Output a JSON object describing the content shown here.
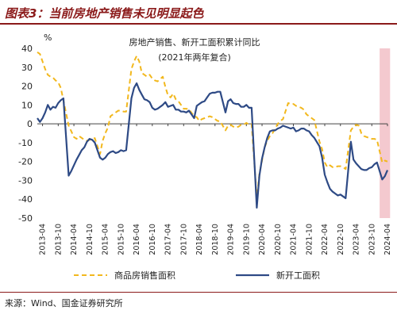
{
  "figure_title": "图表3：当前房地产销售未见明显起色",
  "source": "来源：Wind、国金证券研究所",
  "chart_data": {
    "type": "line",
    "title": "房地产销售、新开工面积累计同比",
    "subtitle": "(2021年两年复合)",
    "ylabel": "%",
    "ylim": [
      -50,
      40
    ],
    "yticks": [
      40,
      30,
      20,
      10,
      0,
      -10,
      -20,
      -30,
      -40,
      -50
    ],
    "x_tick_labels": [
      "2013-04",
      "2013-10",
      "2014-04",
      "2014-10",
      "2015-04",
      "2015-10",
      "2016-04",
      "2016-10",
      "2017-04",
      "2017-10",
      "2018-04",
      "2018-10",
      "2019-04",
      "2019-10",
      "2020-04",
      "2020-10",
      "2021-04",
      "2021-10",
      "2022-04",
      "2022-10",
      "2023-04",
      "2023-10",
      "2024-04"
    ],
    "highlight_band": {
      "from": "2024-01",
      "to": "2024-05",
      "color": "#f4c9cf"
    },
    "series": [
      {
        "name": "商品房销售面积",
        "color": "#f2b81e",
        "dash": true,
        "points": [
          [
            "2013-02",
            38.0
          ],
          [
            "2013-03",
            37.0
          ],
          [
            "2013-04",
            33.0
          ],
          [
            "2013-05",
            29.0
          ],
          [
            "2013-06",
            26.0
          ],
          [
            "2013-07",
            25.0
          ],
          [
            "2013-08",
            24.5
          ],
          [
            "2013-09",
            23.0
          ],
          [
            "2013-10",
            22.0
          ],
          [
            "2013-11",
            19.0
          ],
          [
            "2014-02",
            -1.0
          ],
          [
            "2014-03",
            -4.0
          ],
          [
            "2014-04",
            -7.0
          ],
          [
            "2014-05",
            -8.0
          ],
          [
            "2014-06",
            -6.5
          ],
          [
            "2014-07",
            -7.5
          ],
          [
            "2014-08",
            -8.5
          ],
          [
            "2014-09",
            -9.0
          ],
          [
            "2014-10",
            -8.5
          ],
          [
            "2014-11",
            -8.0
          ],
          [
            "2014-12",
            -7.6
          ],
          [
            "2015-02",
            -16.0
          ],
          [
            "2015-03",
            -9.0
          ],
          [
            "2015-04",
            -5.0
          ],
          [
            "2015-05",
            -2.0
          ],
          [
            "2015-06",
            4.0
          ],
          [
            "2015-07",
            5.0
          ],
          [
            "2015-08",
            6.0
          ],
          [
            "2015-09",
            7.0
          ],
          [
            "2015-10",
            7.0
          ],
          [
            "2015-11",
            6.5
          ],
          [
            "2015-12",
            6.5
          ],
          [
            "2016-02",
            29.0
          ],
          [
            "2016-03",
            33.0
          ],
          [
            "2016-04",
            36.0
          ],
          [
            "2016-05",
            33.0
          ],
          [
            "2016-06",
            27.0
          ],
          [
            "2016-07",
            26.0
          ],
          [
            "2016-08",
            25.0
          ],
          [
            "2016-09",
            26.0
          ],
          [
            "2016-10",
            24.0
          ],
          [
            "2016-11",
            23.0
          ],
          [
            "2016-12",
            22.5
          ],
          [
            "2017-02",
            25.0
          ],
          [
            "2017-03",
            19.5
          ],
          [
            "2017-04",
            15.0
          ],
          [
            "2017-05",
            14.0
          ],
          [
            "2017-06",
            16.0
          ],
          [
            "2017-07",
            13.0
          ],
          [
            "2017-08",
            12.0
          ],
          [
            "2017-09",
            10.0
          ],
          [
            "2017-10",
            8.0
          ],
          [
            "2017-11",
            8.0
          ],
          [
            "2017-12",
            7.7
          ],
          [
            "2018-02",
            4.0
          ],
          [
            "2018-03",
            3.5
          ],
          [
            "2018-04",
            1.5
          ],
          [
            "2018-05",
            2.5
          ],
          [
            "2018-06",
            3.0
          ],
          [
            "2018-07",
            3.5
          ],
          [
            "2018-08",
            4.0
          ],
          [
            "2018-09",
            3.5
          ],
          [
            "2018-10",
            2.5
          ],
          [
            "2018-11",
            1.5
          ],
          [
            "2018-12",
            1.3
          ],
          [
            "2019-02",
            -3.5
          ],
          [
            "2019-03",
            -1.0
          ],
          [
            "2019-04",
            -0.5
          ],
          [
            "2019-05",
            -1.5
          ],
          [
            "2019-06",
            -2.0
          ],
          [
            "2019-07",
            -1.5
          ],
          [
            "2019-08",
            -0.5
          ],
          [
            "2019-09",
            -0.5
          ],
          [
            "2019-10",
            0.5
          ],
          [
            "2019-11",
            -0.5
          ],
          [
            "2019-12",
            -0.1
          ],
          [
            "2020-02",
            -39.5
          ],
          [
            "2020-03",
            -26.5
          ],
          [
            "2020-04",
            -19.5
          ],
          [
            "2020-05",
            -12.5
          ],
          [
            "2020-06",
            -9.0
          ],
          [
            "2020-07",
            -6.5
          ],
          [
            "2020-08",
            -5.0
          ],
          [
            "2020-09",
            -2.5
          ],
          [
            "2020-10",
            0.0
          ],
          [
            "2020-11",
            1.5
          ],
          [
            "2020-12",
            2.5
          ],
          [
            "2021-02",
            11.0
          ],
          [
            "2021-03",
            10.5
          ],
          [
            "2021-04",
            10.5
          ],
          [
            "2021-05",
            9.5
          ],
          [
            "2021-06",
            9.0
          ],
          [
            "2021-07",
            8.5
          ],
          [
            "2021-08",
            7.5
          ],
          [
            "2021-09",
            5.0
          ],
          [
            "2021-10",
            4.0
          ],
          [
            "2021-11",
            3.0
          ],
          [
            "2021-12",
            2.0
          ],
          [
            "2022-02",
            -9.5
          ],
          [
            "2022-03",
            -13.5
          ],
          [
            "2022-04",
            -20.5
          ],
          [
            "2022-05",
            -23.0
          ],
          [
            "2022-06",
            -22.0
          ],
          [
            "2022-07",
            -23.0
          ],
          [
            "2022-08",
            -23.0
          ],
          [
            "2022-09",
            -22.5
          ],
          [
            "2022-10",
            -22.5
          ],
          [
            "2022-11",
            -23.0
          ],
          [
            "2022-12",
            -24.0
          ],
          [
            "2023-02",
            -3.5
          ],
          [
            "2023-03",
            -1.5
          ],
          [
            "2023-04",
            -0.5
          ],
          [
            "2023-05",
            -1.0
          ],
          [
            "2023-06",
            -5.0
          ],
          [
            "2023-07",
            -6.5
          ],
          [
            "2023-08",
            -7.0
          ],
          [
            "2023-09",
            -7.5
          ],
          [
            "2023-10",
            -8.0
          ],
          [
            "2023-11",
            -8.0
          ],
          [
            "2023-12",
            -8.5
          ],
          [
            "2024-02",
            -20.5
          ],
          [
            "2024-03",
            -19.5
          ],
          [
            "2024-04",
            -20.0
          ]
        ]
      },
      {
        "name": "新开工面积",
        "color": "#2e4a85",
        "dash": false,
        "points": [
          [
            "2013-02",
            3.0
          ],
          [
            "2013-03",
            1.0
          ],
          [
            "2013-04",
            3.0
          ],
          [
            "2013-05",
            6.0
          ],
          [
            "2013-06",
            10.0
          ],
          [
            "2013-07",
            7.5
          ],
          [
            "2013-08",
            9.0
          ],
          [
            "2013-09",
            8.5
          ],
          [
            "2013-10",
            11.0
          ],
          [
            "2013-11",
            12.5
          ],
          [
            "2013-12",
            13.5
          ],
          [
            "2014-02",
            -27.5
          ],
          [
            "2014-03",
            -25.0
          ],
          [
            "2014-04",
            -22.0
          ],
          [
            "2014-05",
            -19.0
          ],
          [
            "2014-06",
            -16.5
          ],
          [
            "2014-07",
            -14.0
          ],
          [
            "2014-08",
            -12.5
          ],
          [
            "2014-09",
            -9.5
          ],
          [
            "2014-10",
            -8.0
          ],
          [
            "2014-11",
            -8.5
          ],
          [
            "2014-12",
            -10.0
          ],
          [
            "2015-02",
            -18.0
          ],
          [
            "2015-03",
            -19.0
          ],
          [
            "2015-04",
            -18.0
          ],
          [
            "2015-05",
            -16.0
          ],
          [
            "2015-06",
            -15.0
          ],
          [
            "2015-07",
            -14.5
          ],
          [
            "2015-08",
            -15.5
          ],
          [
            "2015-09",
            -15.0
          ],
          [
            "2015-10",
            -14.0
          ],
          [
            "2015-11",
            -14.5
          ],
          [
            "2015-12",
            -14.0
          ],
          [
            "2016-02",
            13.5
          ],
          [
            "2016-03",
            19.0
          ],
          [
            "2016-04",
            21.5
          ],
          [
            "2016-05",
            18.0
          ],
          [
            "2016-06",
            15.5
          ],
          [
            "2016-07",
            13.0
          ],
          [
            "2016-08",
            12.5
          ],
          [
            "2016-09",
            11.5
          ],
          [
            "2016-10",
            8.5
          ],
          [
            "2016-11",
            7.5
          ],
          [
            "2016-12",
            8.0
          ],
          [
            "2017-02",
            10.0
          ],
          [
            "2017-03",
            11.5
          ],
          [
            "2017-04",
            9.0
          ],
          [
            "2017-05",
            9.5
          ],
          [
            "2017-06",
            10.0
          ],
          [
            "2017-07",
            7.5
          ],
          [
            "2017-08",
            7.5
          ],
          [
            "2017-09",
            6.5
          ],
          [
            "2017-10",
            6.5
          ],
          [
            "2017-11",
            6.0
          ],
          [
            "2017-12",
            7.0
          ],
          [
            "2018-02",
            3.0
          ],
          [
            "2018-03",
            9.5
          ],
          [
            "2018-04",
            10.5
          ],
          [
            "2018-05",
            11.5
          ],
          [
            "2018-06",
            12.0
          ],
          [
            "2018-07",
            14.0
          ],
          [
            "2018-08",
            16.0
          ],
          [
            "2018-09",
            16.5
          ],
          [
            "2018-10",
            16.5
          ],
          [
            "2018-11",
            17.0
          ],
          [
            "2018-12",
            17.0
          ],
          [
            "2019-02",
            6.0
          ],
          [
            "2019-03",
            12.0
          ],
          [
            "2019-04",
            13.0
          ],
          [
            "2019-05",
            11.0
          ],
          [
            "2019-06",
            10.5
          ],
          [
            "2019-07",
            10.5
          ],
          [
            "2019-08",
            9.0
          ],
          [
            "2019-09",
            9.0
          ],
          [
            "2019-10",
            10.0
          ],
          [
            "2019-11",
            8.5
          ],
          [
            "2019-12",
            8.5
          ],
          [
            "2020-02",
            -44.5
          ],
          [
            "2020-03",
            -27.5
          ],
          [
            "2020-04",
            -18.5
          ],
          [
            "2020-05",
            -12.5
          ],
          [
            "2020-06",
            -7.5
          ],
          [
            "2020-07",
            -4.0
          ],
          [
            "2020-08",
            -3.5
          ],
          [
            "2020-09",
            -3.5
          ],
          [
            "2020-10",
            -2.5
          ],
          [
            "2020-11",
            -2.0
          ],
          [
            "2020-12",
            -1.0
          ],
          [
            "2021-02",
            -2.0
          ],
          [
            "2021-03",
            -2.5
          ],
          [
            "2021-04",
            -2.0
          ],
          [
            "2021-05",
            -4.0
          ],
          [
            "2021-06",
            -3.5
          ],
          [
            "2021-07",
            -2.5
          ],
          [
            "2021-08",
            -2.5
          ],
          [
            "2021-09",
            -3.5
          ],
          [
            "2021-10",
            -4.0
          ],
          [
            "2021-11",
            -6.0
          ],
          [
            "2021-12",
            -7.5
          ],
          [
            "2022-02",
            -12.0
          ],
          [
            "2022-03",
            -18.0
          ],
          [
            "2022-04",
            -27.0
          ],
          [
            "2022-05",
            -31.0
          ],
          [
            "2022-06",
            -34.5
          ],
          [
            "2022-07",
            -36.0
          ],
          [
            "2022-08",
            -37.0
          ],
          [
            "2022-09",
            -38.0
          ],
          [
            "2022-10",
            -37.5
          ],
          [
            "2022-11",
            -38.5
          ],
          [
            "2022-12",
            -39.5
          ],
          [
            "2023-02",
            -9.5
          ],
          [
            "2023-03",
            -19.0
          ],
          [
            "2023-04",
            -21.0
          ],
          [
            "2023-05",
            -22.5
          ],
          [
            "2023-06",
            -24.0
          ],
          [
            "2023-07",
            -24.5
          ],
          [
            "2023-08",
            -24.5
          ],
          [
            "2023-09",
            -23.5
          ],
          [
            "2023-10",
            -23.0
          ],
          [
            "2023-11",
            -21.5
          ],
          [
            "2023-12",
            -20.5
          ],
          [
            "2024-02",
            -29.5
          ],
          [
            "2024-03",
            -27.8
          ],
          [
            "2024-04",
            -24.6
          ]
        ]
      }
    ]
  }
}
